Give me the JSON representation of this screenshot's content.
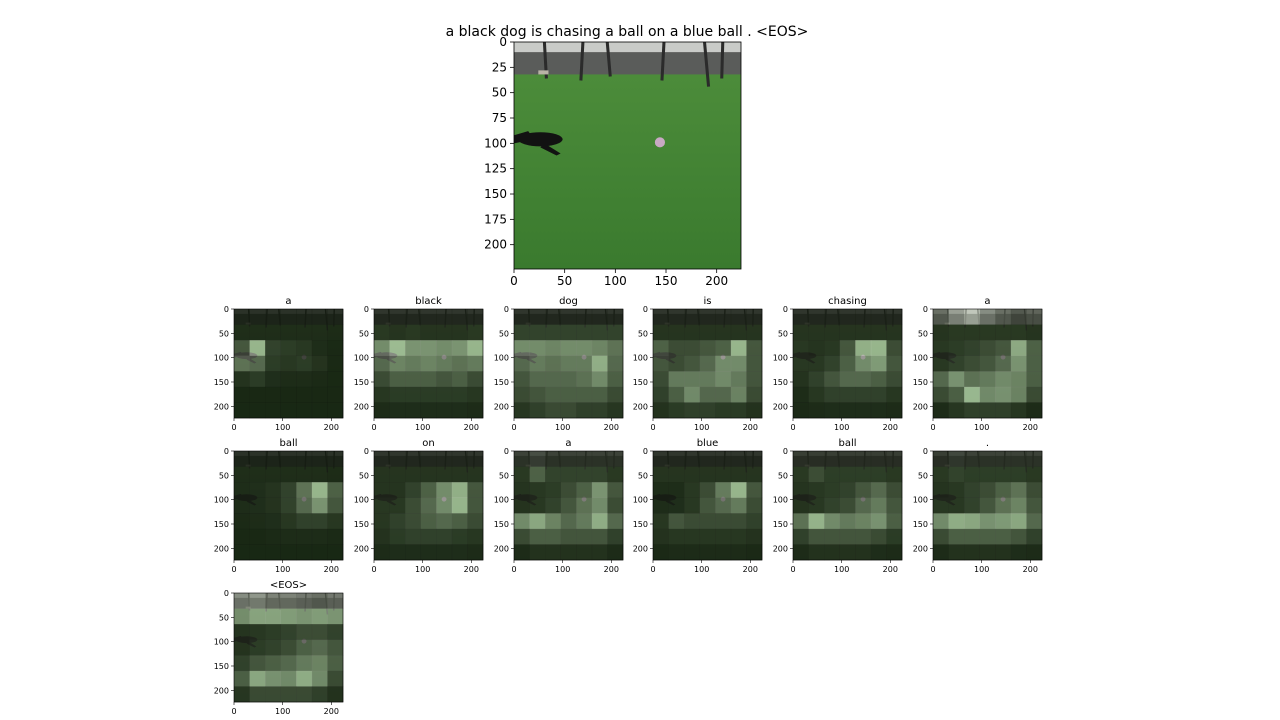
{
  "caption": "a black dog is chasing a ball on a blue ball . <EOS>",
  "colors": {
    "grass_top": "#4f8f3c",
    "grass_bottom": "#3a7a2e",
    "tree_band": "#5a5c5a",
    "sky": "#c9cbc8",
    "dog": "#121212",
    "ball": "#c9a9c4",
    "overlay_dark": "#0d140a",
    "overlay_light": "#e8f1df"
  },
  "chart_data": [
    {
      "type": "image",
      "title": "a black dog is chasing a ball on a blue ball . <EOS>",
      "xlim": [
        0,
        224
      ],
      "ylim": [
        224,
        0
      ],
      "xticks": [
        0,
        50,
        100,
        150,
        200
      ],
      "yticks": [
        0,
        25,
        50,
        75,
        100,
        125,
        150,
        175,
        200
      ]
    },
    {
      "type": "heatmap",
      "panels": [
        {
          "word": "a",
          "weights": [
            [
              0.03,
              0.03,
              0.03,
              0.03,
              0.03,
              0.03,
              0.03
            ],
            [
              0.05,
              0.05,
              0.05,
              0.05,
              0.05,
              0.05,
              0.04
            ],
            [
              0.25,
              0.85,
              0.15,
              0.12,
              0.1,
              0.05,
              0.03
            ],
            [
              0.4,
              0.35,
              0.12,
              0.1,
              0.12,
              0.08,
              0.03
            ],
            [
              0.08,
              0.12,
              0.06,
              0.05,
              0.05,
              0.04,
              0.03
            ],
            [
              0.03,
              0.03,
              0.03,
              0.03,
              0.03,
              0.03,
              0.03
            ],
            [
              0.03,
              0.03,
              0.03,
              0.03,
              0.03,
              0.03,
              0.03
            ]
          ],
          "xticks": [
            0,
            100,
            200
          ],
          "yticks": [
            0,
            50,
            100,
            150,
            200
          ]
        },
        {
          "word": "black",
          "weights": [
            [
              0.05,
              0.05,
              0.05,
              0.05,
              0.05,
              0.05,
              0.05
            ],
            [
              0.1,
              0.08,
              0.1,
              0.08,
              0.08,
              0.08,
              0.1
            ],
            [
              0.55,
              0.9,
              0.6,
              0.6,
              0.55,
              0.6,
              0.85
            ],
            [
              0.35,
              0.5,
              0.45,
              0.5,
              0.45,
              0.4,
              0.45
            ],
            [
              0.2,
              0.3,
              0.3,
              0.3,
              0.25,
              0.3,
              0.2
            ],
            [
              0.1,
              0.12,
              0.12,
              0.12,
              0.12,
              0.12,
              0.1
            ],
            [
              0.05,
              0.06,
              0.06,
              0.06,
              0.06,
              0.06,
              0.05
            ]
          ],
          "xticks": [
            0,
            100,
            200
          ],
          "yticks": [
            0,
            50,
            100,
            150,
            200
          ]
        },
        {
          "word": "dog",
          "weights": [
            [
              0.05,
              0.05,
              0.05,
              0.05,
              0.05,
              0.05,
              0.05
            ],
            [
              0.15,
              0.15,
              0.15,
              0.15,
              0.15,
              0.15,
              0.15
            ],
            [
              0.55,
              0.55,
              0.5,
              0.55,
              0.55,
              0.5,
              0.4
            ],
            [
              0.35,
              0.45,
              0.4,
              0.45,
              0.45,
              0.8,
              0.35
            ],
            [
              0.25,
              0.35,
              0.35,
              0.35,
              0.4,
              0.55,
              0.3
            ],
            [
              0.2,
              0.25,
              0.3,
              0.3,
              0.3,
              0.3,
              0.2
            ],
            [
              0.1,
              0.15,
              0.2,
              0.2,
              0.15,
              0.15,
              0.1
            ]
          ],
          "xticks": [
            0,
            100,
            200
          ],
          "yticks": [
            0,
            50,
            100,
            150,
            200
          ]
        },
        {
          "word": "is",
          "weights": [
            [
              0.05,
              0.05,
              0.05,
              0.05,
              0.05,
              0.05,
              0.05
            ],
            [
              0.08,
              0.08,
              0.08,
              0.08,
              0.08,
              0.08,
              0.08
            ],
            [
              0.3,
              0.2,
              0.2,
              0.25,
              0.3,
              0.85,
              0.25
            ],
            [
              0.25,
              0.2,
              0.25,
              0.35,
              0.55,
              0.55,
              0.25
            ],
            [
              0.2,
              0.45,
              0.45,
              0.45,
              0.55,
              0.45,
              0.25
            ],
            [
              0.15,
              0.3,
              0.55,
              0.35,
              0.35,
              0.5,
              0.2
            ],
            [
              0.08,
              0.12,
              0.15,
              0.15,
              0.12,
              0.12,
              0.08
            ]
          ],
          "xticks": [
            0,
            100,
            200
          ],
          "yticks": [
            0,
            50,
            100,
            150,
            200
          ]
        },
        {
          "word": "chasing",
          "weights": [
            [
              0.05,
              0.05,
              0.05,
              0.05,
              0.05,
              0.05,
              0.05
            ],
            [
              0.08,
              0.08,
              0.08,
              0.08,
              0.08,
              0.08,
              0.08
            ],
            [
              0.1,
              0.08,
              0.1,
              0.25,
              0.8,
              0.85,
              0.2
            ],
            [
              0.1,
              0.1,
              0.15,
              0.3,
              0.55,
              0.65,
              0.25
            ],
            [
              0.08,
              0.15,
              0.25,
              0.35,
              0.35,
              0.3,
              0.2
            ],
            [
              0.05,
              0.1,
              0.15,
              0.15,
              0.15,
              0.15,
              0.1
            ],
            [
              0.04,
              0.05,
              0.06,
              0.06,
              0.06,
              0.06,
              0.05
            ]
          ],
          "xticks": [
            0,
            100,
            200
          ],
          "yticks": [
            0,
            50,
            100,
            150,
            200
          ]
        },
        {
          "word": "a",
          "weights": [
            [
              0.3,
              0.55,
              0.8,
              0.45,
              0.3,
              0.2,
              0.25
            ],
            [
              0.08,
              0.1,
              0.1,
              0.1,
              0.1,
              0.1,
              0.08
            ],
            [
              0.1,
              0.12,
              0.15,
              0.2,
              0.25,
              0.75,
              0.3
            ],
            [
              0.1,
              0.15,
              0.2,
              0.25,
              0.35,
              0.6,
              0.3
            ],
            [
              0.35,
              0.6,
              0.4,
              0.45,
              0.55,
              0.5,
              0.3
            ],
            [
              0.2,
              0.3,
              0.9,
              0.55,
              0.6,
              0.5,
              0.2
            ],
            [
              0.05,
              0.1,
              0.15,
              0.15,
              0.15,
              0.1,
              0.05
            ]
          ],
          "xticks": [
            0,
            100,
            200
          ],
          "yticks": [
            0,
            50,
            100,
            150,
            200
          ]
        },
        {
          "word": "ball",
          "weights": [
            [
              0.03,
              0.03,
              0.03,
              0.03,
              0.03,
              0.03,
              0.03
            ],
            [
              0.05,
              0.05,
              0.05,
              0.05,
              0.05,
              0.05,
              0.04
            ],
            [
              0.05,
              0.06,
              0.08,
              0.15,
              0.4,
              0.85,
              0.3
            ],
            [
              0.05,
              0.06,
              0.08,
              0.15,
              0.35,
              0.6,
              0.25
            ],
            [
              0.04,
              0.05,
              0.06,
              0.1,
              0.15,
              0.15,
              0.1
            ],
            [
              0.03,
              0.03,
              0.04,
              0.05,
              0.05,
              0.05,
              0.04
            ],
            [
              0.03,
              0.03,
              0.03,
              0.03,
              0.03,
              0.03,
              0.03
            ]
          ],
          "xticks": [
            0,
            100,
            200
          ],
          "yticks": [
            0,
            50,
            100,
            150,
            200
          ]
        },
        {
          "word": "on",
          "weights": [
            [
              0.05,
              0.05,
              0.05,
              0.05,
              0.05,
              0.05,
              0.05
            ],
            [
              0.08,
              0.08,
              0.08,
              0.08,
              0.08,
              0.08,
              0.08
            ],
            [
              0.08,
              0.08,
              0.15,
              0.3,
              0.55,
              0.8,
              0.25
            ],
            [
              0.1,
              0.1,
              0.2,
              0.35,
              0.55,
              0.85,
              0.25
            ],
            [
              0.1,
              0.15,
              0.2,
              0.3,
              0.35,
              0.3,
              0.2
            ],
            [
              0.08,
              0.12,
              0.15,
              0.15,
              0.15,
              0.12,
              0.1
            ],
            [
              0.05,
              0.06,
              0.06,
              0.06,
              0.06,
              0.06,
              0.05
            ]
          ],
          "xticks": [
            0,
            100,
            200
          ],
          "yticks": [
            0,
            50,
            100,
            150,
            200
          ]
        },
        {
          "word": "a",
          "weights": [
            [
              0.1,
              0.15,
              0.1,
              0.1,
              0.1,
              0.1,
              0.1
            ],
            [
              0.1,
              0.3,
              0.15,
              0.15,
              0.15,
              0.15,
              0.1
            ],
            [
              0.08,
              0.1,
              0.12,
              0.2,
              0.3,
              0.6,
              0.25
            ],
            [
              0.08,
              0.1,
              0.15,
              0.25,
              0.4,
              0.55,
              0.2
            ],
            [
              0.55,
              0.75,
              0.5,
              0.35,
              0.45,
              0.8,
              0.35
            ],
            [
              0.2,
              0.3,
              0.3,
              0.25,
              0.25,
              0.25,
              0.15
            ],
            [
              0.05,
              0.08,
              0.08,
              0.08,
              0.08,
              0.08,
              0.05
            ]
          ],
          "xticks": [
            0,
            100,
            200
          ],
          "yticks": [
            0,
            50,
            100,
            150,
            200
          ]
        },
        {
          "word": "blue",
          "weights": [
            [
              0.05,
              0.05,
              0.05,
              0.05,
              0.05,
              0.05,
              0.05
            ],
            [
              0.08,
              0.08,
              0.08,
              0.08,
              0.08,
              0.08,
              0.08
            ],
            [
              0.05,
              0.05,
              0.1,
              0.2,
              0.45,
              0.85,
              0.25
            ],
            [
              0.05,
              0.06,
              0.1,
              0.25,
              0.35,
              0.45,
              0.2
            ],
            [
              0.1,
              0.25,
              0.2,
              0.2,
              0.2,
              0.2,
              0.15
            ],
            [
              0.08,
              0.1,
              0.1,
              0.1,
              0.1,
              0.1,
              0.08
            ],
            [
              0.04,
              0.05,
              0.05,
              0.05,
              0.05,
              0.05,
              0.04
            ]
          ],
          "xticks": [
            0,
            100,
            200
          ],
          "yticks": [
            0,
            50,
            100,
            150,
            200
          ]
        },
        {
          "word": "ball",
          "weights": [
            [
              0.08,
              0.08,
              0.08,
              0.08,
              0.08,
              0.08,
              0.08
            ],
            [
              0.1,
              0.2,
              0.12,
              0.12,
              0.12,
              0.12,
              0.1
            ],
            [
              0.08,
              0.1,
              0.12,
              0.15,
              0.25,
              0.35,
              0.2
            ],
            [
              0.08,
              0.1,
              0.15,
              0.2,
              0.35,
              0.45,
              0.25
            ],
            [
              0.4,
              0.85,
              0.55,
              0.45,
              0.5,
              0.6,
              0.3
            ],
            [
              0.15,
              0.25,
              0.25,
              0.25,
              0.25,
              0.2,
              0.12
            ],
            [
              0.05,
              0.08,
              0.08,
              0.08,
              0.08,
              0.06,
              0.05
            ]
          ],
          "xticks": [
            0,
            100,
            200
          ],
          "yticks": [
            0,
            50,
            100,
            150,
            200
          ]
        },
        {
          "word": ".",
          "weights": [
            [
              0.08,
              0.12,
              0.1,
              0.1,
              0.1,
              0.1,
              0.1
            ],
            [
              0.1,
              0.15,
              0.12,
              0.12,
              0.12,
              0.12,
              0.1
            ],
            [
              0.08,
              0.1,
              0.15,
              0.2,
              0.3,
              0.4,
              0.2
            ],
            [
              0.1,
              0.1,
              0.15,
              0.25,
              0.4,
              0.5,
              0.25
            ],
            [
              0.55,
              0.8,
              0.75,
              0.6,
              0.65,
              0.75,
              0.35
            ],
            [
              0.2,
              0.3,
              0.3,
              0.3,
              0.3,
              0.25,
              0.15
            ],
            [
              0.05,
              0.08,
              0.08,
              0.08,
              0.08,
              0.06,
              0.05
            ]
          ],
          "xticks": [
            0,
            100,
            200
          ],
          "yticks": [
            0,
            50,
            100,
            150,
            200
          ]
        },
        {
          "word": "<EOS>",
          "weights": [
            [
              0.45,
              0.5,
              0.4,
              0.4,
              0.35,
              0.3,
              0.35
            ],
            [
              0.55,
              0.7,
              0.7,
              0.65,
              0.6,
              0.65,
              0.6
            ],
            [
              0.08,
              0.1,
              0.12,
              0.15,
              0.2,
              0.2,
              0.15
            ],
            [
              0.08,
              0.12,
              0.15,
              0.2,
              0.3,
              0.35,
              0.25
            ],
            [
              0.15,
              0.25,
              0.3,
              0.35,
              0.45,
              0.5,
              0.3
            ],
            [
              0.3,
              0.75,
              0.6,
              0.55,
              0.8,
              0.55,
              0.2
            ],
            [
              0.1,
              0.2,
              0.2,
              0.2,
              0.2,
              0.15,
              0.08
            ]
          ],
          "xticks": [
            0,
            100,
            200
          ],
          "yticks": [
            0,
            50,
            100,
            150,
            200
          ]
        }
      ]
    }
  ]
}
